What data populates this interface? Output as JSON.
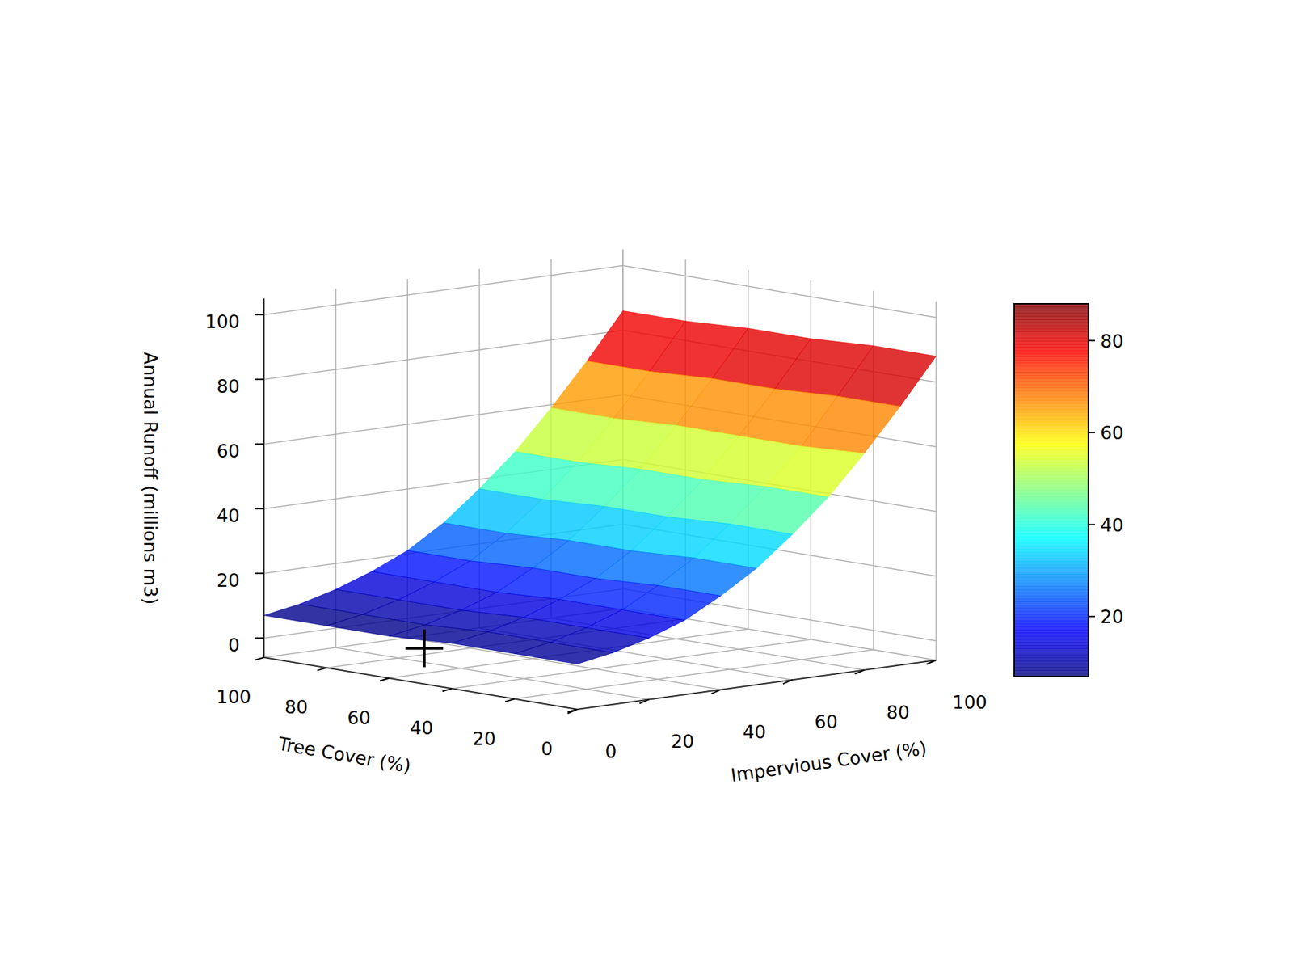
{
  "chart_data": {
    "type": "surface3d",
    "x_label": "Impervious Cover (%)",
    "y_label": "Tree Cover (%)",
    "z_label": "Annual Runoff (millions m3)",
    "x": [
      0,
      10,
      20,
      30,
      40,
      50,
      60,
      70,
      80,
      90,
      100
    ],
    "y": [
      0,
      20,
      40,
      60,
      80,
      100
    ],
    "z": [
      [
        8,
        10,
        13,
        17,
        23,
        30,
        39,
        49,
        61,
        74,
        88
      ],
      [
        8,
        10,
        13,
        17,
        23,
        30,
        39,
        49,
        60,
        74,
        88
      ],
      [
        8,
        10,
        13,
        17,
        22,
        29,
        38,
        48,
        60,
        73,
        87
      ],
      [
        7,
        9,
        12,
        16,
        22,
        29,
        38,
        48,
        60,
        73,
        87
      ],
      [
        7,
        9,
        12,
        16,
        21,
        28,
        37,
        47,
        59,
        72,
        86
      ],
      [
        7,
        9,
        12,
        16,
        21,
        28,
        37,
        47,
        59,
        72,
        86
      ]
    ],
    "xlim": [
      0,
      100
    ],
    "ylim": [
      0,
      100
    ],
    "zlim": [
      -6,
      105
    ],
    "xticks": [
      0,
      20,
      40,
      60,
      80,
      100
    ],
    "yticks": [
      0,
      20,
      40,
      60,
      80,
      100
    ],
    "zticks": [
      0,
      20,
      40,
      60,
      80,
      100
    ],
    "colorbar_range": [
      7,
      88
    ],
    "colorbar_ticks": [
      20,
      40,
      60,
      80
    ],
    "points": [
      {
        "x": 15,
        "y": 66,
        "z": 0
      }
    ],
    "grid": true
  }
}
